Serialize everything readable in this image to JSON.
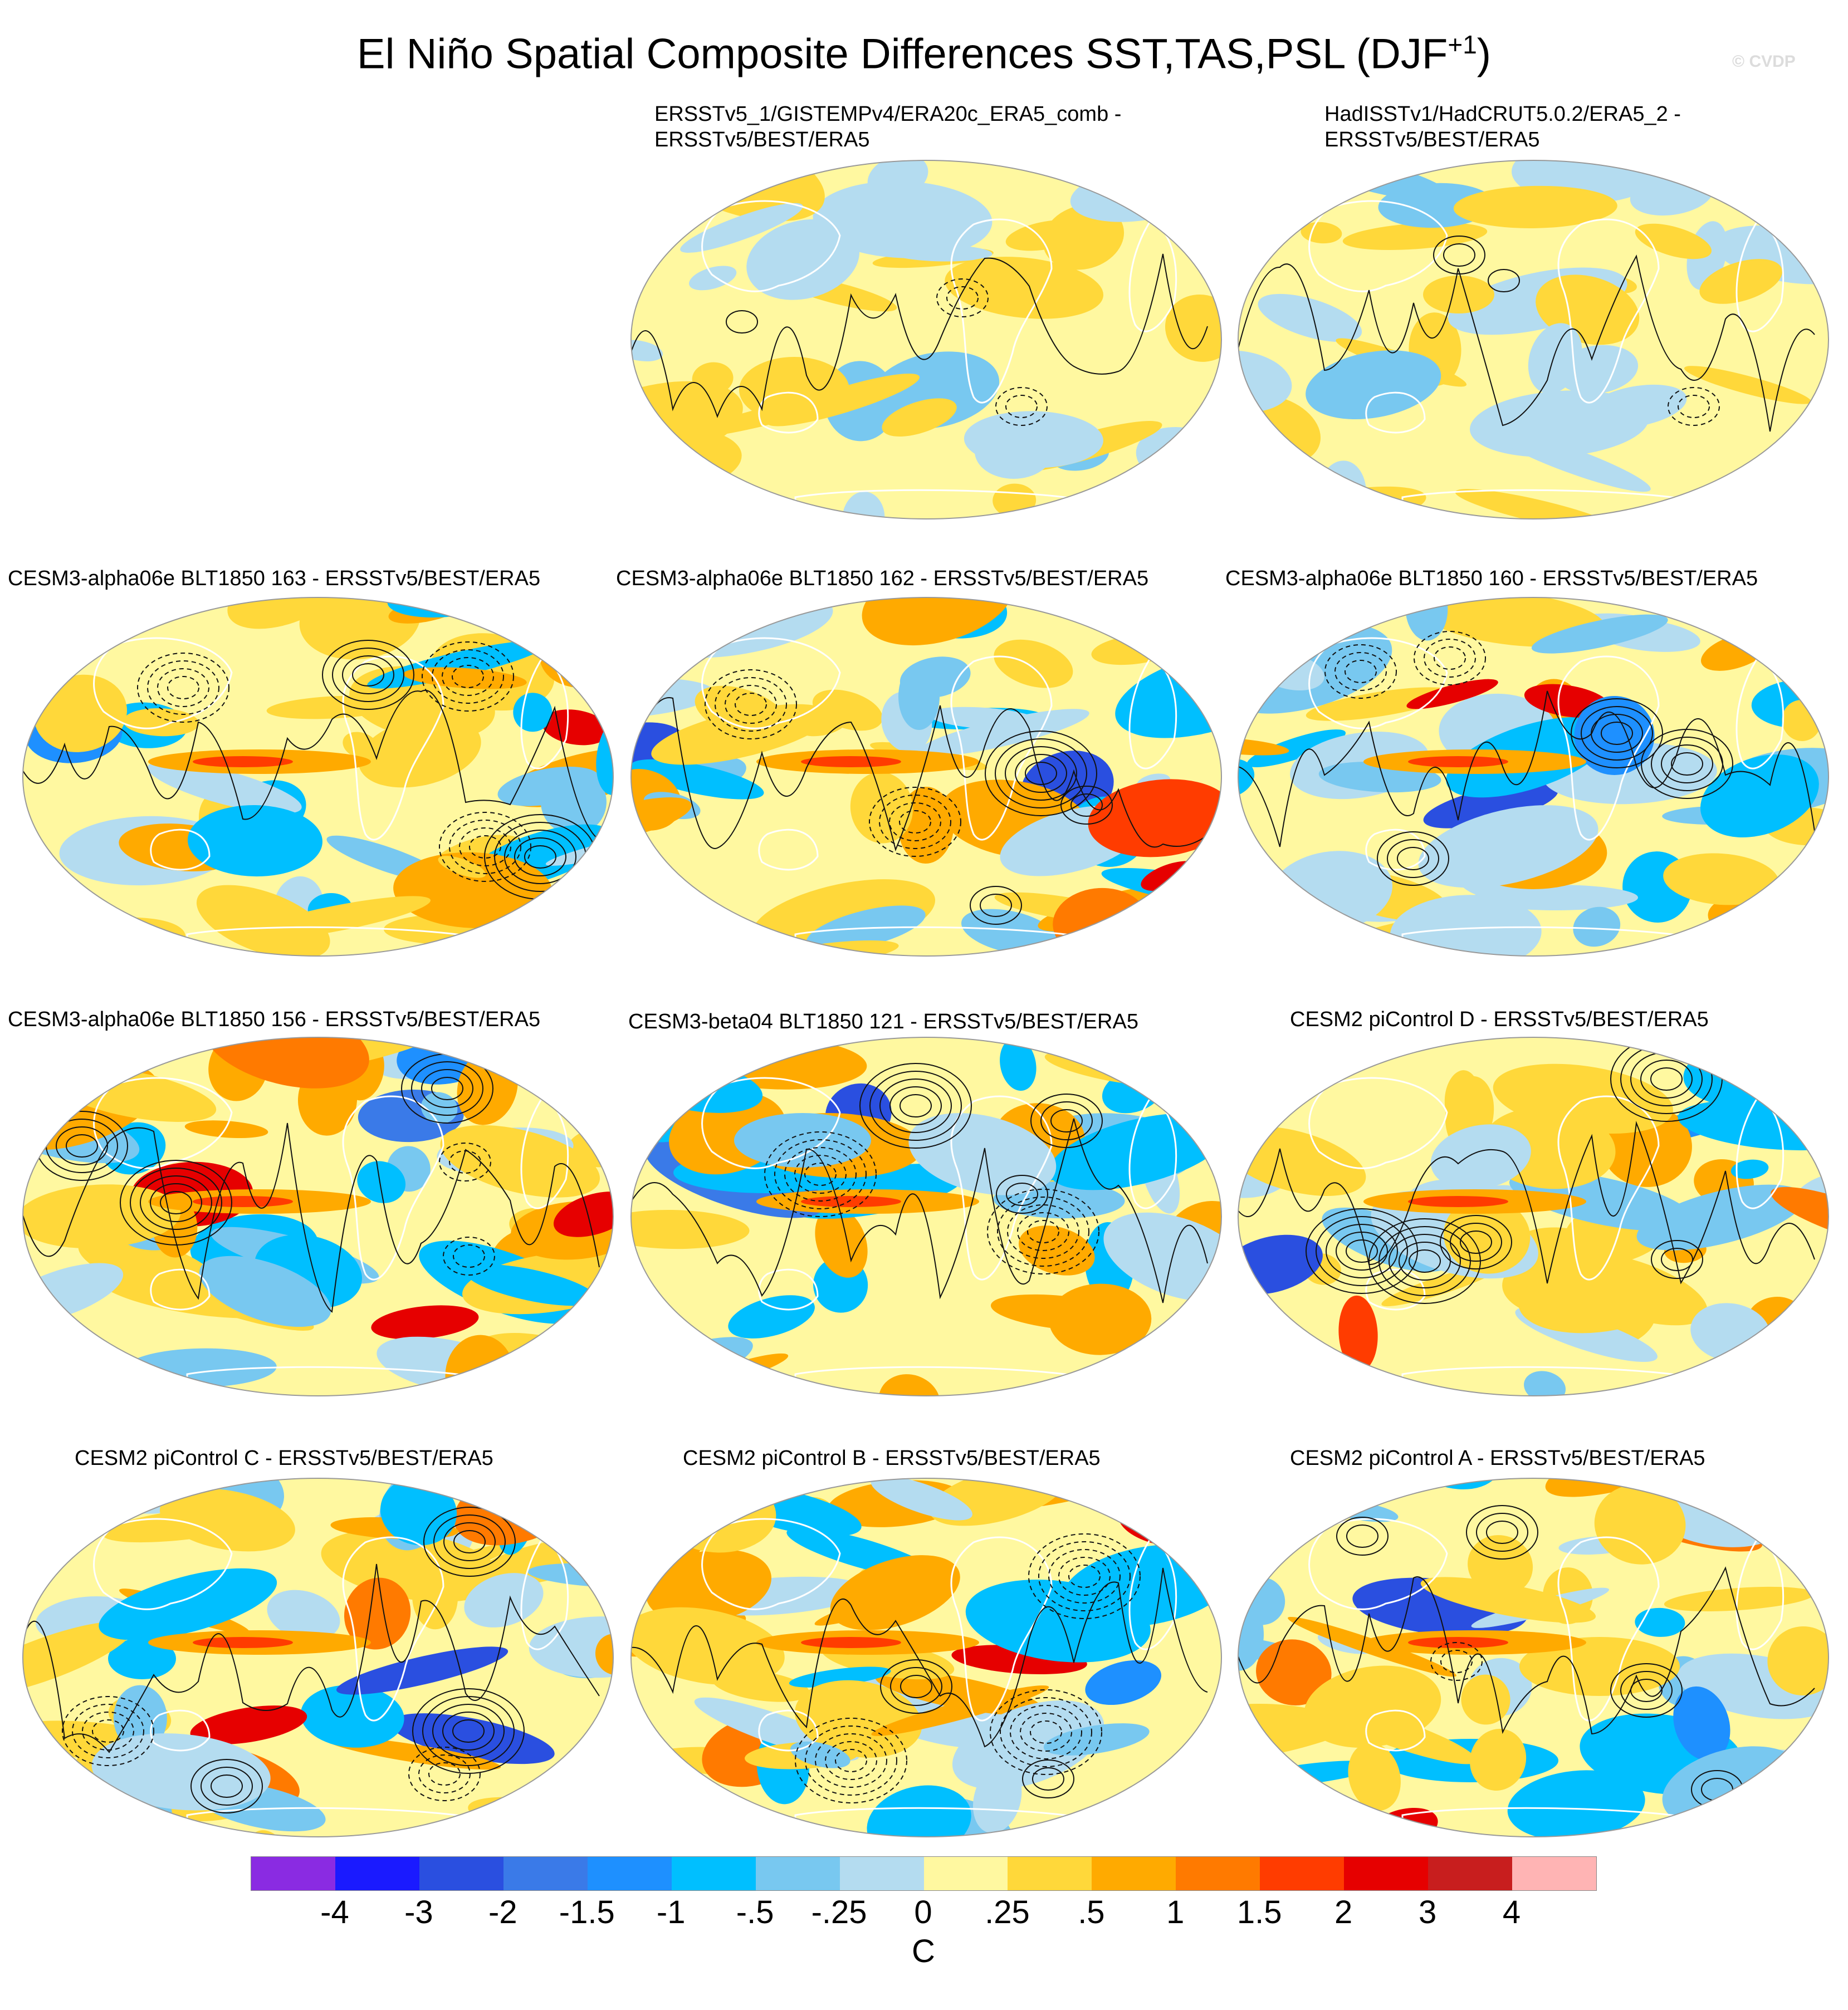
{
  "title": "El Niño Spatial Composite Differences SST,TAS,PSL (DJF",
  "title_sup": "+1",
  "title_close": ")",
  "credit": "© CVDP",
  "panels": [
    {
      "line1": "ERSSTv5_1/GISTEMPv4/ERA20c_ERA5_comb -",
      "line2": "ERSSTv5/BEST/ERA5",
      "style": "weak"
    },
    {
      "line1": "HadISSTv1/HadCRUT5.0.2/ERA5_2 -",
      "line2": "ERSSTv5/BEST/ERA5",
      "style": "weak"
    },
    {
      "line1": "CESM3-alpha06e BLT1850 163 - ERSSTv5/BEST/ERA5",
      "line2": "",
      "style": "strong"
    },
    {
      "line1": "CESM3-alpha06e BLT1850 162 - ERSSTv5/BEST/ERA5",
      "line2": "",
      "style": "strong"
    },
    {
      "line1": "CESM3-alpha06e BLT1850 160 - ERSSTv5/BEST/ERA5",
      "line2": "",
      "style": "strong"
    },
    {
      "line1": "CESM3-alpha06e BLT1850 156 - ERSSTv5/BEST/ERA5",
      "line2": "",
      "style": "strong"
    },
    {
      "line1": "CESM3-beta04 BLT1850 121 - ERSSTv5/BEST/ERA5",
      "line2": "",
      "style": "strong"
    },
    {
      "line1": "CESM2 piControl D - ERSSTv5/BEST/ERA5",
      "line2": "",
      "style": "strong"
    },
    {
      "line1": "CESM2 piControl C - ERSSTv5/BEST/ERA5",
      "line2": "",
      "style": "strong"
    },
    {
      "line1": "CESM2 piControl B - ERSSTv5/BEST/ERA5",
      "line2": "",
      "style": "strong"
    },
    {
      "line1": "CESM2 piControl A - ERSSTv5/BEST/ERA5",
      "line2": "",
      "style": "strong"
    }
  ],
  "colorbar": {
    "colors": [
      "#8a2be2",
      "#1a1aff",
      "#2a4fe0",
      "#3a7ae8",
      "#1e90ff",
      "#00bfff",
      "#78c8f0",
      "#b4dcf0",
      "#fff8a0",
      "#ffd83a",
      "#ffaa00",
      "#ff7a00",
      "#ff3c00",
      "#e60000",
      "#c81e1e",
      "#ffb4b4"
    ],
    "tick_labels": [
      "-4",
      "-3",
      "-2",
      "-1.5",
      "-1",
      "-.5",
      "-.25",
      "0",
      ".25",
      ".5",
      "1",
      "1.5",
      "2",
      "3",
      "4"
    ],
    "unit": "C"
  }
}
